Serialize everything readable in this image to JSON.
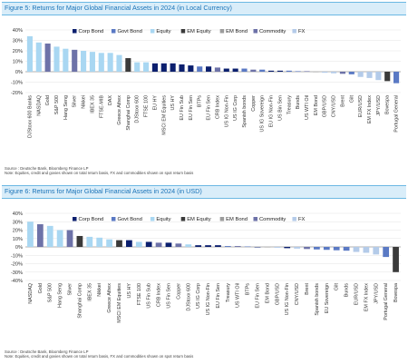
{
  "colors": {
    "Corp Bond": "#0b1f6e",
    "Govt Bond": "#5a79c4",
    "Equity": "#a9d7f2",
    "EM Equity": "#3a3a3a",
    "EM Bond": "#9c9c9c",
    "Commodity": "#6d72a8",
    "FX": "#b4cbe9"
  },
  "legend_order": [
    "Corp Bond",
    "Govt Bond",
    "Equity",
    "EM Equity",
    "EM Bond",
    "Commodity",
    "FX"
  ],
  "chart_data": [
    {
      "type": "bar",
      "title": "Figure 5: Returns for Major Global Financial Assets in 2024 (in Local Currency)",
      "source": "Source : Deutsche Bank, Bloomberg Finance LP",
      "note": "Note: Equities, credit and govies shown on total return basis, FX and commodities shown on spot return basis",
      "ylim": [
        -20,
        40
      ],
      "yticks": [
        -20,
        -10,
        0,
        10,
        20,
        30,
        40
      ],
      "ytick_labels": [
        "-20%",
        "-10%",
        "0%",
        "10%",
        "20%",
        "30%",
        "40%"
      ],
      "categories": [
        "DJStoxx 600 Banks",
        "NASDAQ",
        "Gold",
        "S&P 500",
        "Hang Seng",
        "Silver",
        "Nikkei",
        "IBEX 35",
        "FTSE-MIB",
        "DAX",
        "Greece Athex",
        "Shanghai Comp",
        "DJStoxx 600",
        "FTSE 100",
        "EU HY",
        "MSCI EM Equities",
        "US HY",
        "EU Fin Sub",
        "EU Fin Sen",
        "BTPs",
        "EU Fin Sen",
        "CRB Index",
        "US IG Non-Fin",
        "US IG Corp",
        "Spanish bonds",
        "Copper",
        "US IG Sovereign",
        "EU IG Non-Fin",
        "US Bin Sen",
        "Treasury",
        "Bunds",
        "US WTI Oil",
        "EM Bond",
        "GBP/USD",
        "CNY/USD",
        "Brent",
        "Gilt",
        "EUR/USD",
        "EM FX Index",
        "JPY/USD",
        "Bovespa",
        "Portugal General"
      ],
      "values": [
        34,
        28,
        27,
        24,
        22,
        21,
        20,
        19,
        18,
        18,
        16,
        13,
        9,
        9,
        8,
        8,
        8,
        7,
        6,
        5,
        5,
        4,
        3,
        3,
        3,
        2,
        2,
        1,
        1,
        1,
        0.5,
        0.5,
        0,
        -1,
        -1.5,
        -2,
        -2.5,
        -5,
        -6,
        -8,
        -9,
        -11
      ],
      "classes": [
        "Equity",
        "Equity",
        "Commodity",
        "Equity",
        "Equity",
        "Commodity",
        "Equity",
        "Equity",
        "Equity",
        "Equity",
        "Equity",
        "EM Equity",
        "Equity",
        "Equity",
        "Corp Bond",
        "Corp Bond",
        "Corp Bond",
        "Corp Bond",
        "Corp Bond",
        "Govt Bond",
        "Corp Bond",
        "Commodity",
        "Corp Bond",
        "Corp Bond",
        "Govt Bond",
        "Commodity",
        "Govt Bond",
        "Corp Bond",
        "Corp Bond",
        "Govt Bond",
        "Govt Bond",
        "Commodity",
        "EM Bond",
        "FX",
        "FX",
        "Commodity",
        "Govt Bond",
        "FX",
        "FX",
        "FX",
        "EM Equity",
        "Govt Bond"
      ]
    },
    {
      "type": "bar",
      "title": "Figure 6: Returns for Major Global Financial Assets in 2024 (in USD)",
      "source": "Source : Deutsche Bank, Bloomberg Finance LP",
      "note": "Note: Equities, credit and govies shown on total return basis, FX and commodities shown on spot return basis",
      "ylim": [
        -40,
        40
      ],
      "yticks": [
        -40,
        -30,
        -20,
        -10,
        0,
        10,
        20,
        30,
        40
      ],
      "ytick_labels": [
        "-40%",
        "-30%",
        "-20%",
        "-10%",
        "0%",
        "10%",
        "20%",
        "30%",
        "40%"
      ],
      "categories": [
        "NASDAQ",
        "Gold",
        "S&P 500",
        "Hang Seng",
        "Silver",
        "Shanghai Comp",
        "IBEX 35",
        "Nikkei",
        "Greece Athex",
        "MSCI EM Equities",
        "US HY",
        "FTSE 100",
        "US Fin Sub",
        "CRB Index",
        "US Fin Sen",
        "Copper",
        "DJStoxx 600",
        "US IG Corp",
        "US IG Non-Fin",
        "EU Fin Sen",
        "Treasury",
        "US WTI Oil",
        "BTPs",
        "EU Fin Sen",
        "EM Bond",
        "GBP/USD",
        "US IG Non-Fin",
        "CNY/USD",
        "Brent",
        "Spanish bonds",
        "EU Sovereign",
        "Gilt",
        "Bunds",
        "EUR/USD",
        "EM FX Index",
        "JPY/USD",
        "Portugal General",
        "Bovespa"
      ],
      "values": [
        30,
        27,
        25,
        20,
        20,
        13,
        12,
        11,
        9,
        8,
        8,
        6,
        6,
        5,
        5,
        4,
        3,
        2,
        2,
        2,
        1,
        1,
        0.5,
        0,
        -0.5,
        -1,
        -1.5,
        -2,
        -2.5,
        -3,
        -3.5,
        -4,
        -4.5,
        -6,
        -7,
        -9,
        -12,
        -30
      ],
      "classes": [
        "Equity",
        "Commodity",
        "Equity",
        "Equity",
        "Commodity",
        "EM Equity",
        "Equity",
        "Equity",
        "Equity",
        "EM Equity",
        "Corp Bond",
        "Equity",
        "Corp Bond",
        "Commodity",
        "Corp Bond",
        "Commodity",
        "Equity",
        "Corp Bond",
        "Corp Bond",
        "Corp Bond",
        "Govt Bond",
        "Commodity",
        "Govt Bond",
        "Corp Bond",
        "EM Bond",
        "FX",
        "Corp Bond",
        "FX",
        "Commodity",
        "Govt Bond",
        "Govt Bond",
        "Govt Bond",
        "Govt Bond",
        "FX",
        "FX",
        "FX",
        "Govt Bond",
        "EM Equity"
      ]
    }
  ]
}
